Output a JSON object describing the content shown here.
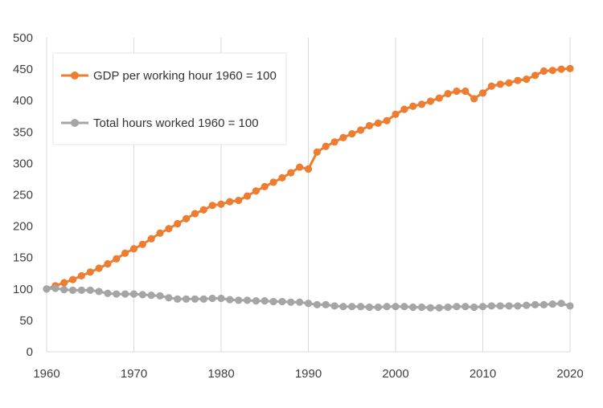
{
  "chart_data": {
    "type": "line",
    "title": "",
    "xlabel": "",
    "ylabel": "",
    "xlim": [
      1960,
      2020
    ],
    "ylim": [
      0,
      500
    ],
    "xticks": [
      1960,
      1970,
      1980,
      1990,
      2000,
      2010,
      2020
    ],
    "yticks": [
      0,
      50,
      100,
      150,
      200,
      250,
      300,
      350,
      400,
      450,
      500
    ],
    "grid": "vertical",
    "legend_position": "top-left",
    "x": [
      1960,
      1961,
      1962,
      1963,
      1964,
      1965,
      1966,
      1967,
      1968,
      1969,
      1970,
      1971,
      1972,
      1973,
      1974,
      1975,
      1976,
      1977,
      1978,
      1979,
      1980,
      1981,
      1982,
      1983,
      1984,
      1985,
      1986,
      1987,
      1988,
      1989,
      1990,
      1991,
      1992,
      1993,
      1994,
      1995,
      1996,
      1997,
      1998,
      1999,
      2000,
      2001,
      2002,
      2003,
      2004,
      2005,
      2006,
      2007,
      2008,
      2009,
      2010,
      2011,
      2012,
      2013,
      2014,
      2015,
      2016,
      2017,
      2018,
      2019,
      2020
    ],
    "series": [
      {
        "name": "GDP per working hour 1960 = 100",
        "color": "#ED7D31",
        "values": [
          100,
          105,
          110,
          115,
          121,
          127,
          133,
          140,
          148,
          157,
          164,
          171,
          180,
          189,
          196,
          204,
          212,
          220,
          226,
          233,
          235,
          239,
          241,
          248,
          256,
          263,
          270,
          277,
          285,
          294,
          291,
          318,
          327,
          334,
          341,
          347,
          353,
          360,
          364,
          368,
          378,
          386,
          391,
          394,
          399,
          404,
          411,
          415,
          415,
          403,
          412,
          423,
          426,
          428,
          432,
          434,
          440,
          447,
          448,
          450,
          451
        ]
      },
      {
        "name": "Total hours worked 1960 = 100",
        "color": "#A5A5A5",
        "values": [
          100,
          101,
          99,
          98,
          98,
          98,
          96,
          93,
          92,
          92,
          92,
          91,
          90,
          89,
          86,
          84,
          84,
          84,
          84,
          85,
          85,
          83,
          82,
          82,
          81,
          81,
          80,
          80,
          79,
          79,
          77,
          75,
          75,
          73,
          72,
          72,
          72,
          71,
          71,
          72,
          72,
          72,
          71,
          71,
          70,
          70,
          71,
          72,
          72,
          71,
          72,
          73,
          73,
          73,
          73,
          74,
          75,
          75,
          76,
          77,
          73
        ]
      }
    ]
  }
}
